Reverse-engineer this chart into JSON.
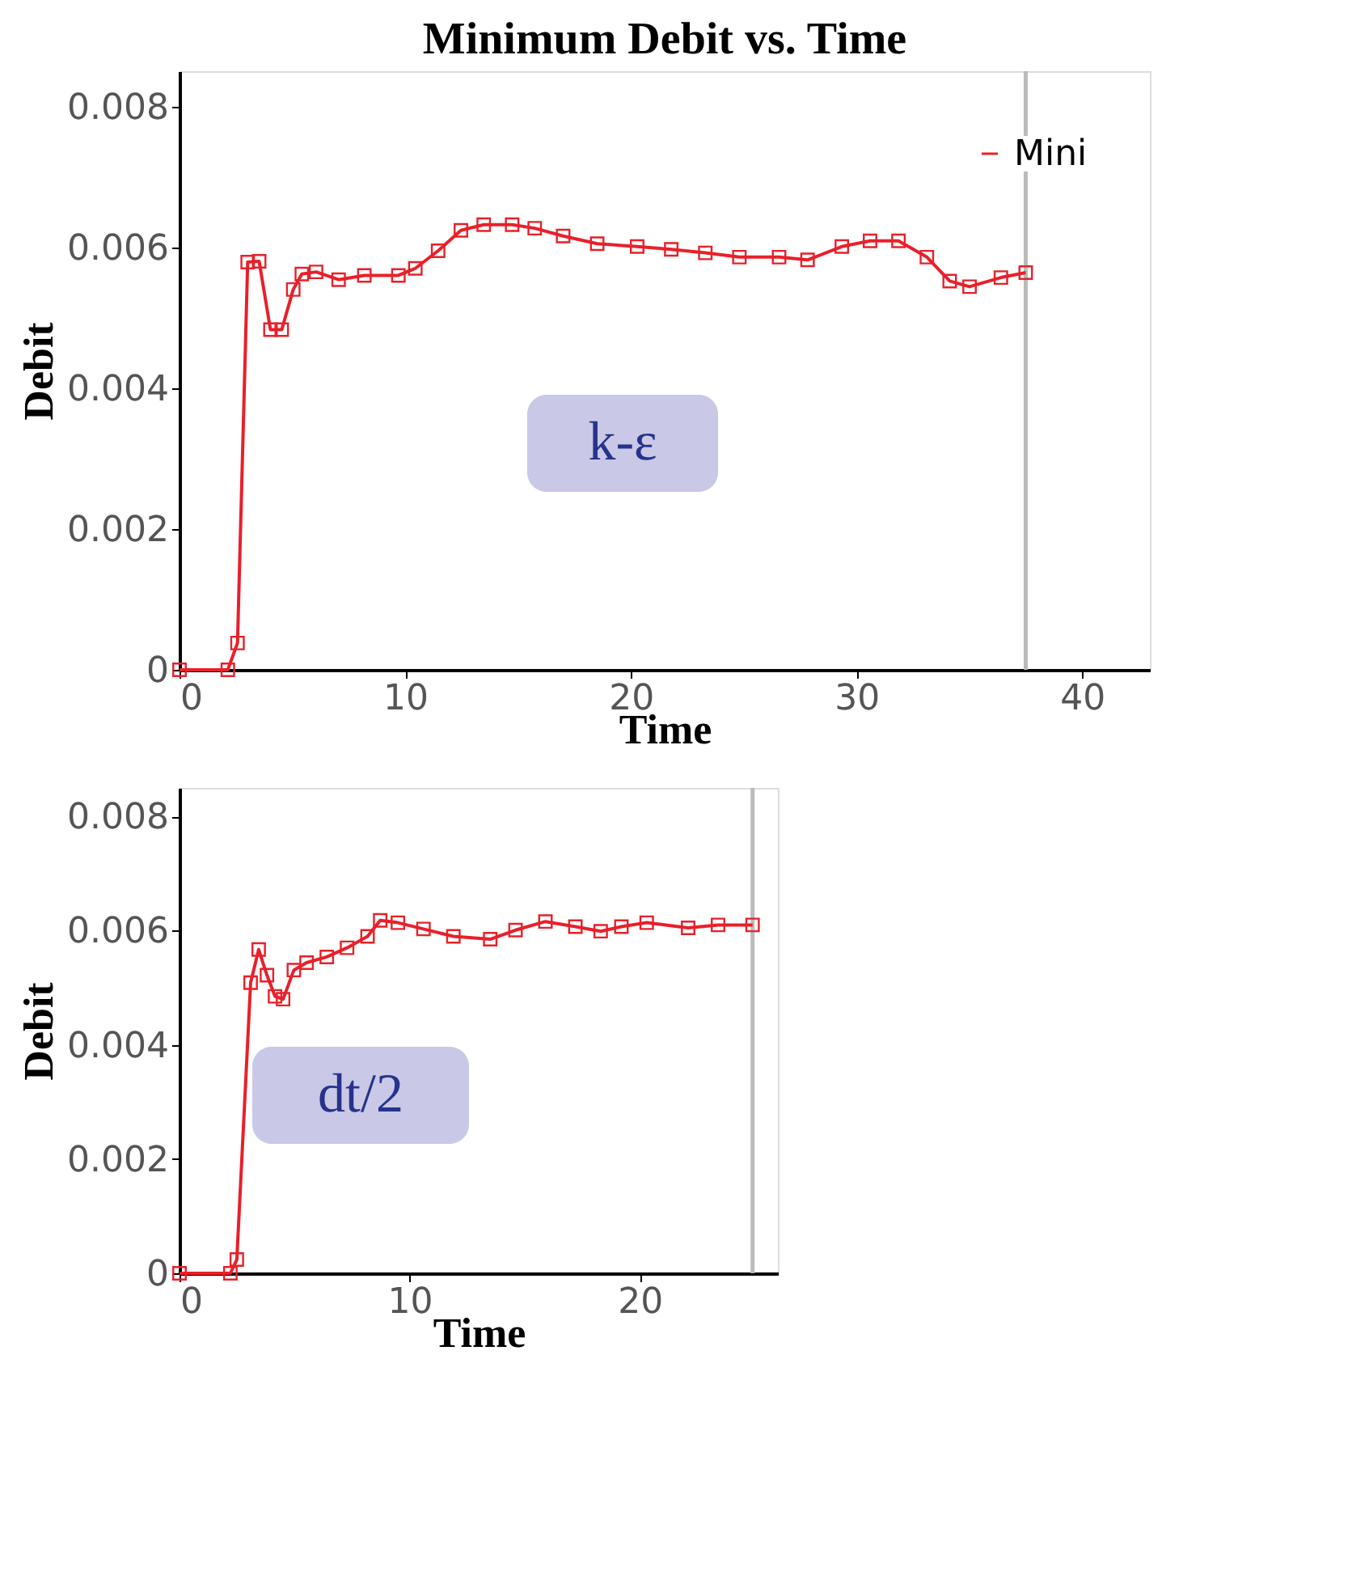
{
  "chart_data": [
    {
      "type": "line",
      "title": "Minimum Debit vs. Time",
      "xlabel": "Time",
      "ylabel": "Debit",
      "marker": "square",
      "line_style": "solid",
      "legend": "top right",
      "grid": false,
      "xlim": [
        0,
        43
      ],
      "xticks": [
        0,
        10,
        20,
        30,
        40
      ],
      "ylim": [
        0,
        0.0085
      ],
      "yticks": [
        0,
        0.002,
        0.004,
        0.006,
        0.008
      ],
      "series": [
        {
          "name": "Mini",
          "color": "#e8202a",
          "x": [
            0,
            2.14,
            2.57,
            3.02,
            3.53,
            4.03,
            4.53,
            5.04,
            5.42,
            6.05,
            7.05,
            8.19,
            9.7,
            10.45,
            11.46,
            12.47,
            13.48,
            14.74,
            15.74,
            17.0,
            18.51,
            20.28,
            21.79,
            23.3,
            24.81,
            26.57,
            27.83,
            29.35,
            30.6,
            31.86,
            33.12,
            34.13,
            35.01,
            36.4,
            37.5
          ],
          "values": [
            0,
            0,
            0.00038,
            0.00579,
            0.0058,
            0.00483,
            0.00483,
            0.0054,
            0.00562,
            0.00565,
            0.00554,
            0.0056,
            0.0056,
            0.0057,
            0.00595,
            0.00624,
            0.00632,
            0.00632,
            0.00627,
            0.00616,
            0.00605,
            0.00601,
            0.00597,
            0.00592,
            0.00586,
            0.00586,
            0.00582,
            0.00601,
            0.00609,
            0.00609,
            0.00586,
            0.00552,
            0.00544,
            0.00557,
            0.00564
          ]
        }
      ],
      "ref_lines": [
        {
          "axis": "x",
          "value": 37.5,
          "color": "#bbbbbb"
        }
      ],
      "annotations": [
        "k-ε"
      ]
    },
    {
      "type": "line",
      "xlabel": "Time",
      "ylabel": "Debit",
      "marker": "square",
      "line_style": "solid",
      "grid": false,
      "xlim": [
        0,
        26
      ],
      "xticks": [
        0,
        10,
        20
      ],
      "ylim": [
        0,
        0.0085
      ],
      "yticks": [
        0,
        0.002,
        0.004,
        0.006,
        0.008
      ],
      "series": [
        {
          "color": "#e8202a",
          "x": [
            0,
            2.21,
            2.49,
            3.09,
            3.44,
            3.8,
            4.15,
            4.5,
            4.97,
            5.52,
            6.4,
            7.28,
            8.17,
            8.72,
            9.49,
            10.6,
            11.9,
            13.5,
            14.6,
            15.9,
            17.2,
            18.3,
            19.2,
            20.3,
            22.1,
            23.4,
            24.9
          ],
          "values": [
            0,
            0,
            0.00024,
            0.00509,
            0.00567,
            0.00522,
            0.00485,
            0.0048,
            0.00531,
            0.00544,
            0.00554,
            0.0057,
            0.0059,
            0.00618,
            0.00614,
            0.00603,
            0.0059,
            0.00585,
            0.00601,
            0.00616,
            0.00607,
            0.00599,
            0.00607,
            0.00614,
            0.00605,
            0.0061,
            0.0061
          ]
        }
      ],
      "ref_lines": [
        {
          "axis": "x",
          "value": 24.9,
          "color": "#bbbbbb"
        }
      ],
      "annotations": [
        "dt/2"
      ]
    }
  ]
}
